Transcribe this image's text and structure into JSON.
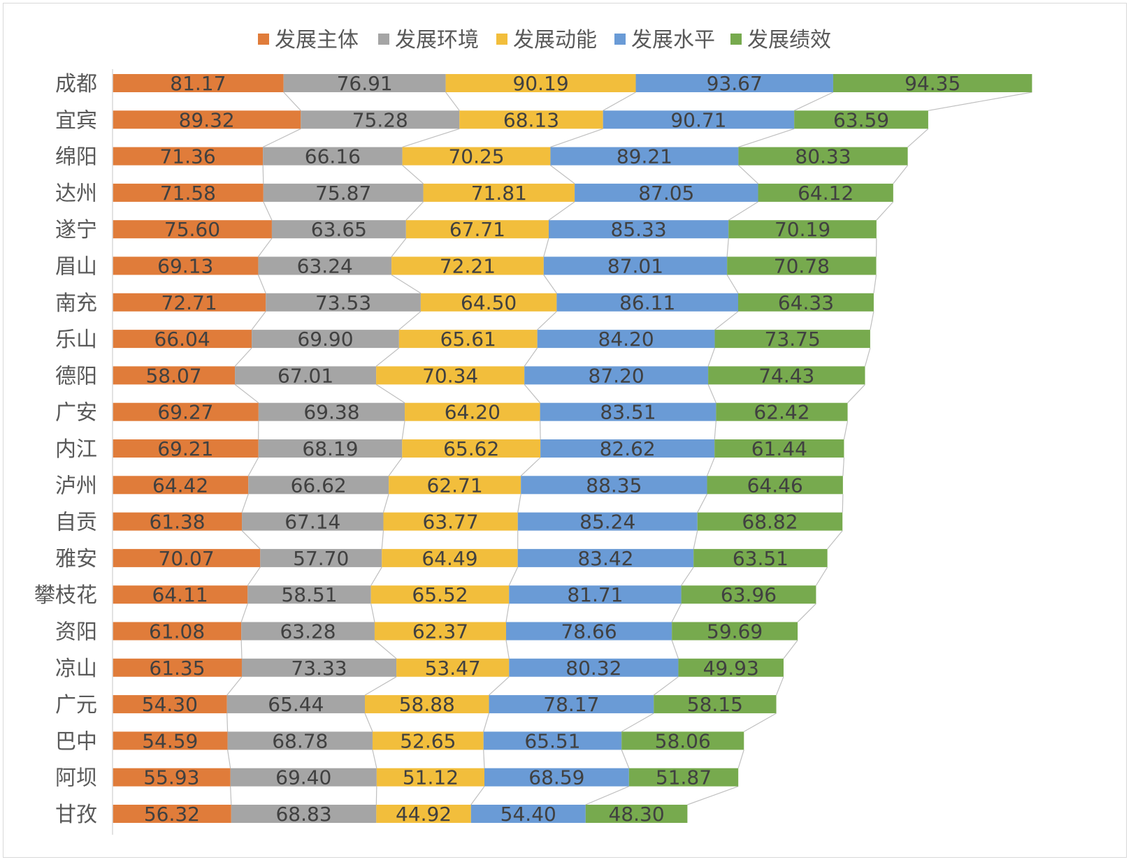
{
  "chart_data": {
    "type": "bar",
    "orientation": "horizontal",
    "stacked": true,
    "series_lines": true,
    "legend_position": "top",
    "categories": [
      "成都",
      "宜宾",
      "绵阳",
      "达州",
      "遂宁",
      "眉山",
      "南充",
      "乐山",
      "德阳",
      "广安",
      "内江",
      "泸州",
      "自贡",
      "雅安",
      "攀枝花",
      "资阳",
      "凉山",
      "广元",
      "巴中",
      "阿坝",
      "甘孜"
    ],
    "series": [
      {
        "name": "发展主体",
        "color": "#E07C3A",
        "values": [
          81.17,
          89.32,
          71.36,
          71.58,
          75.6,
          69.13,
          72.71,
          66.04,
          58.07,
          69.27,
          69.21,
          64.42,
          61.38,
          70.07,
          64.11,
          61.08,
          61.35,
          54.3,
          54.59,
          55.93,
          56.32
        ]
      },
      {
        "name": "发展环境",
        "color": "#A5A5A5",
        "values": [
          76.91,
          75.28,
          66.16,
          75.87,
          63.65,
          63.24,
          73.53,
          69.9,
          67.01,
          69.38,
          68.19,
          66.62,
          67.14,
          57.7,
          58.51,
          63.28,
          73.33,
          65.44,
          68.78,
          69.4,
          68.83
        ]
      },
      {
        "name": "发展动能",
        "color": "#F2BE3C",
        "values": [
          90.19,
          68.13,
          70.25,
          71.81,
          67.71,
          72.21,
          64.5,
          65.61,
          70.34,
          64.2,
          65.62,
          62.71,
          63.77,
          64.49,
          65.52,
          62.37,
          53.47,
          58.88,
          52.65,
          51.12,
          44.92
        ]
      },
      {
        "name": "发展水平",
        "color": "#6A9BD6",
        "values": [
          93.67,
          90.71,
          89.21,
          87.05,
          85.33,
          87.01,
          86.11,
          84.2,
          87.2,
          83.51,
          82.62,
          88.35,
          85.24,
          83.42,
          81.71,
          78.66,
          80.32,
          78.17,
          65.51,
          68.59,
          54.4
        ]
      },
      {
        "name": "发展绩效",
        "color": "#77AA4E",
        "values": [
          94.35,
          63.59,
          80.33,
          64.12,
          70.19,
          70.78,
          64.33,
          73.75,
          74.43,
          62.42,
          61.44,
          64.46,
          68.82,
          63.51,
          63.96,
          59.69,
          49.93,
          58.15,
          58.06,
          51.87,
          48.3
        ]
      }
    ]
  }
}
